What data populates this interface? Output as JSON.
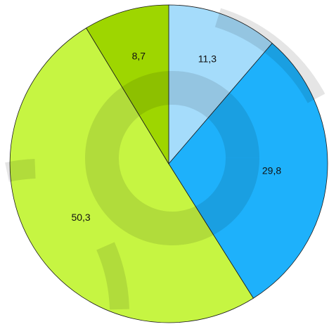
{
  "chart_data": {
    "type": "pie",
    "start_angle_deg": 0,
    "direction": "clockwise",
    "slices": [
      {
        "label": "11,3",
        "value": 11.3,
        "color": "#a5dcfb"
      },
      {
        "label": "29,8",
        "value": 29.8,
        "color": "#1eb1fb"
      },
      {
        "label": "50,3",
        "value": 50.3,
        "color": "#c6f542"
      },
      {
        "label": "8,7",
        "value": 8.7,
        "color": "#9ed600"
      }
    ],
    "legend": "none",
    "title": ""
  }
}
